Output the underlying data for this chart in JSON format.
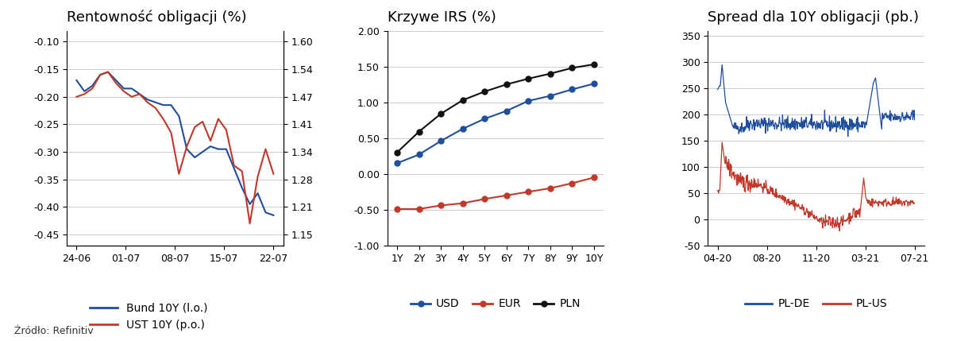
{
  "chart1": {
    "title": "Rentowność obligacji (%)",
    "left_yticks": [
      -0.1,
      -0.15,
      -0.2,
      -0.25,
      -0.3,
      -0.35,
      -0.4,
      -0.45
    ],
    "right_yticks": [
      1.6,
      1.54,
      1.47,
      1.41,
      1.34,
      1.28,
      1.21,
      1.15
    ],
    "xtick_labels": [
      "24-06",
      "01-07",
      "08-07",
      "15-07",
      "22-07"
    ],
    "bund_color": "#1f4e9c",
    "ust_color": "#c0392b",
    "legend": [
      "Bund 10Y (l.o.)",
      "UST 10Y (p.o.)"
    ],
    "bund_y": [
      -0.17,
      -0.19,
      -0.18,
      -0.16,
      -0.155,
      -0.17,
      -0.185,
      -0.185,
      -0.195,
      -0.205,
      -0.21,
      -0.215,
      -0.215,
      -0.235,
      -0.295,
      -0.31,
      -0.3,
      -0.29,
      -0.295,
      -0.295,
      -0.33,
      -0.365,
      -0.395,
      -0.375,
      -0.41,
      -0.415
    ],
    "ust_y": [
      -0.2,
      -0.195,
      -0.185,
      -0.16,
      -0.155,
      -0.175,
      -0.19,
      -0.2,
      -0.195,
      -0.21,
      -0.22,
      -0.24,
      -0.265,
      -0.34,
      -0.29,
      -0.255,
      -0.245,
      -0.28,
      -0.24,
      -0.26,
      -0.325,
      -0.335,
      -0.43,
      -0.345,
      -0.295,
      -0.34
    ]
  },
  "chart2": {
    "title": "Krzywe IRS (%)",
    "tenors": [
      "1Y",
      "2Y",
      "3Y",
      "4Y",
      "5Y",
      "6Y",
      "7Y",
      "8Y",
      "9Y",
      "10Y"
    ],
    "usd": [
      0.15,
      0.27,
      0.46,
      0.63,
      0.77,
      0.88,
      1.02,
      1.09,
      1.18,
      1.26
    ],
    "eur": [
      -0.49,
      -0.49,
      -0.44,
      -0.41,
      -0.35,
      -0.3,
      -0.25,
      -0.2,
      -0.13,
      -0.05
    ],
    "pln": [
      0.3,
      0.59,
      0.84,
      1.03,
      1.15,
      1.25,
      1.33,
      1.4,
      1.48,
      1.53
    ],
    "usd_color": "#1f4e9c",
    "eur_color": "#c0392b",
    "pln_color": "#111111",
    "ylim": [
      -1.0,
      2.0
    ],
    "yticks": [
      -1.0,
      -0.5,
      0.0,
      0.5,
      1.0,
      1.5,
      2.0
    ],
    "legend": [
      "USD",
      "EUR",
      "PLN"
    ]
  },
  "chart3": {
    "title": "Spread dla 10Y obligacji (pb.)",
    "plde_color": "#1f4e9c",
    "plus_color": "#c0392b",
    "ylim": [
      -50,
      360
    ],
    "yticks": [
      -50,
      0,
      50,
      100,
      150,
      200,
      250,
      300,
      350
    ],
    "xtick_labels": [
      "04-20",
      "08-20",
      "11-20",
      "03-21",
      "07-21"
    ],
    "legend": [
      "PL-DE",
      "PL-US"
    ]
  },
  "source": "Źródło: Refinitiv",
  "bg_color": "#ffffff",
  "grid_color": "#cccccc",
  "title_fontsize": 13,
  "tick_fontsize": 9,
  "legend_fontsize": 10
}
